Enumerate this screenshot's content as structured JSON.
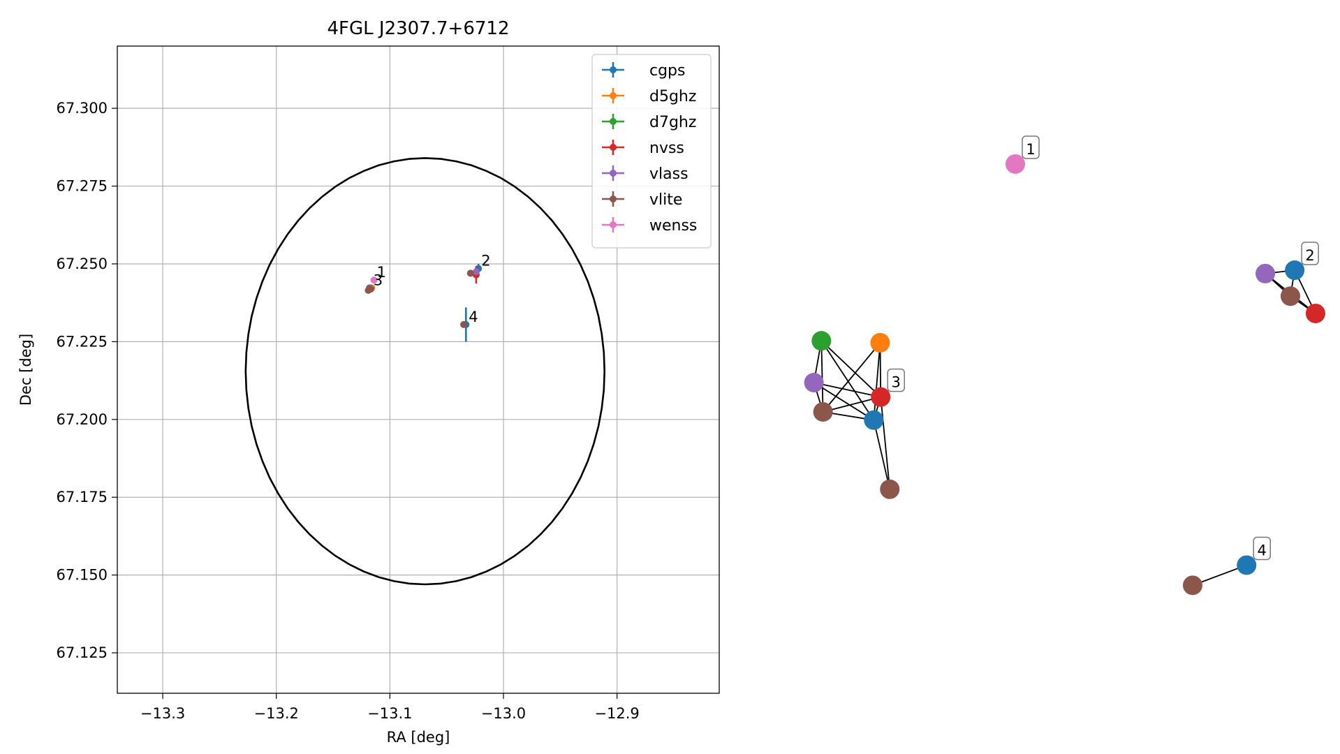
{
  "chart_data": [
    {
      "type": "scatter",
      "title": "4FGL J2307.7+6712",
      "xlabel": "RA [deg]",
      "ylabel": "Dec [deg]",
      "xlim": [
        -13.34,
        -12.81
      ],
      "ylim": [
        67.112,
        67.32
      ],
      "xticks": [
        -13.3,
        -13.2,
        -13.1,
        -13.0,
        -12.9
      ],
      "xtick_labels": [
        "−13.3",
        "−13.2",
        "−13.1",
        "−13.0",
        "−12.9"
      ],
      "yticks": [
        67.125,
        67.15,
        67.175,
        67.2,
        67.225,
        67.25,
        67.275,
        67.3
      ],
      "ytick_labels": [
        "67.125",
        "67.150",
        "67.175",
        "67.200",
        "67.225",
        "67.250",
        "67.275",
        "67.300"
      ],
      "grid": true,
      "legend_position": "top-right",
      "ellipse": {
        "center": [
          -13.069,
          67.2155
        ],
        "ra_semi_axis": 0.158,
        "dec_semi_axis": 0.0685
      },
      "series": [
        {
          "name": "cgps",
          "color": "#1f77b4",
          "points": [
            {
              "x": -13.022,
              "y": 67.2485,
              "xerr": 0.001,
              "yerr": 0.0015
            },
            {
              "x": -13.033,
              "y": 67.2305,
              "xerr": 0.001,
              "yerr": 0.0055
            }
          ]
        },
        {
          "name": "d5ghz",
          "color": "#ff7f0e",
          "points": [
            {
              "x": -13.116,
              "y": 67.2423,
              "xerr": 0.0008,
              "yerr": 0.0005
            }
          ]
        },
        {
          "name": "d7ghz",
          "color": "#2ca02c",
          "points": [
            {
              "x": -13.117,
              "y": 67.2421,
              "xerr": 0.0008,
              "yerr": 0.0005
            }
          ]
        },
        {
          "name": "nvss",
          "color": "#d62728",
          "points": [
            {
              "x": -13.117,
              "y": 67.2419,
              "xerr": 0.001,
              "yerr": 0.0006
            },
            {
              "x": -13.024,
              "y": 67.2465,
              "xerr": 0.001,
              "yerr": 0.0028
            }
          ]
        },
        {
          "name": "vlass",
          "color": "#9467bd",
          "points": [
            {
              "x": -13.118,
              "y": 67.2423,
              "xerr": 0.0005,
              "yerr": 0.0004
            },
            {
              "x": -13.024,
              "y": 67.2475,
              "xerr": 0.0005,
              "yerr": 0.0004
            }
          ]
        },
        {
          "name": "vlite",
          "color": "#8c564b",
          "points": [
            {
              "x": -13.118,
              "y": 67.242,
              "xerr": 0.001,
              "yerr": 0.0006
            },
            {
              "x": -13.119,
              "y": 67.2415,
              "xerr": 0.001,
              "yerr": 0.0006
            },
            {
              "x": -13.029,
              "y": 67.247,
              "xerr": 0.001,
              "yerr": 0.0006
            },
            {
              "x": -13.035,
              "y": 67.2305,
              "xerr": 0.001,
              "yerr": 0.0006
            }
          ]
        },
        {
          "name": "wenss",
          "color": "#e377c2",
          "points": [
            {
              "x": -13.114,
              "y": 67.2448,
              "xerr": 0.001,
              "yerr": 0.0008
            }
          ]
        }
      ],
      "annotations": [
        {
          "text": "1",
          "x": -13.114,
          "y": 67.2448
        },
        {
          "text": "2",
          "x": -13.022,
          "y": 67.2485
        },
        {
          "text": "3",
          "x": -13.117,
          "y": 67.2423
        },
        {
          "text": "4",
          "x": -13.033,
          "y": 67.2305
        }
      ]
    },
    {
      "type": "network",
      "nodes": [
        {
          "id": "1-wenss",
          "series": "wenss",
          "color": "#e377c2",
          "u": 0.4,
          "v": 0.891
        },
        {
          "id": "2-cgps",
          "series": "cgps",
          "color": "#1f77b4",
          "u": 0.923,
          "v": 0.67
        },
        {
          "id": "2-vlass",
          "series": "vlass",
          "color": "#9467bd",
          "u": 0.868,
          "v": 0.663
        },
        {
          "id": "2-vlite",
          "series": "vlite",
          "color": "#8c564b",
          "u": 0.915,
          "v": 0.616
        },
        {
          "id": "2-nvss",
          "series": "nvss",
          "color": "#d62728",
          "u": 0.962,
          "v": 0.58
        },
        {
          "id": "3-d7ghz",
          "series": "d7ghz",
          "color": "#2ca02c",
          "u": 0.037,
          "v": 0.523
        },
        {
          "id": "3-d5ghz",
          "series": "d5ghz",
          "color": "#ff7f0e",
          "u": 0.147,
          "v": 0.519
        },
        {
          "id": "3-vlass",
          "series": "vlass",
          "color": "#9467bd",
          "u": 0.023,
          "v": 0.436
        },
        {
          "id": "3-nvss",
          "series": "nvss",
          "color": "#d62728",
          "u": 0.148,
          "v": 0.406
        },
        {
          "id": "3-vlite",
          "series": "vlite",
          "color": "#8c564b",
          "u": 0.04,
          "v": 0.375
        },
        {
          "id": "3-cgps",
          "series": "cgps",
          "color": "#1f77b4",
          "u": 0.135,
          "v": 0.358
        },
        {
          "id": "3-vlite2",
          "series": "vlite",
          "color": "#8c564b",
          "u": 0.165,
          "v": 0.214
        },
        {
          "id": "4-cgps",
          "series": "cgps",
          "color": "#1f77b4",
          "u": 0.833,
          "v": 0.056
        },
        {
          "id": "4-vlite",
          "series": "vlite",
          "color": "#8c564b",
          "u": 0.732,
          "v": 0.014
        }
      ],
      "edges": [
        [
          "2-vlass",
          "2-cgps"
        ],
        [
          "2-vlass",
          "2-vlite"
        ],
        [
          "2-vlass",
          "2-nvss"
        ],
        [
          "2-cgps",
          "2-vlite"
        ],
        [
          "2-cgps",
          "2-nvss"
        ],
        [
          "2-vlite",
          "2-nvss"
        ],
        [
          "3-d7ghz",
          "3-vlite"
        ],
        [
          "3-d7ghz",
          "3-cgps"
        ],
        [
          "3-d7ghz",
          "3-nvss"
        ],
        [
          "3-d7ghz",
          "3-vlass"
        ],
        [
          "3-d5ghz",
          "3-vlite"
        ],
        [
          "3-d5ghz",
          "3-cgps"
        ],
        [
          "3-d5ghz",
          "3-nvss"
        ],
        [
          "3-vlass",
          "3-nvss"
        ],
        [
          "3-vlass",
          "3-cgps"
        ],
        [
          "3-vlass",
          "3-vlite"
        ],
        [
          "3-vlite",
          "3-cgps"
        ],
        [
          "3-vlite",
          "3-nvss"
        ],
        [
          "3-cgps",
          "3-nvss"
        ],
        [
          "3-cgps",
          "3-vlite2"
        ],
        [
          "3-nvss",
          "3-vlite2"
        ],
        [
          "4-cgps",
          "4-vlite"
        ]
      ],
      "labels": [
        {
          "text": "1",
          "node": "1-wenss"
        },
        {
          "text": "2",
          "node": "2-cgps"
        },
        {
          "text": "3",
          "node": "3-nvss"
        },
        {
          "text": "4",
          "node": "4-cgps"
        }
      ]
    }
  ]
}
